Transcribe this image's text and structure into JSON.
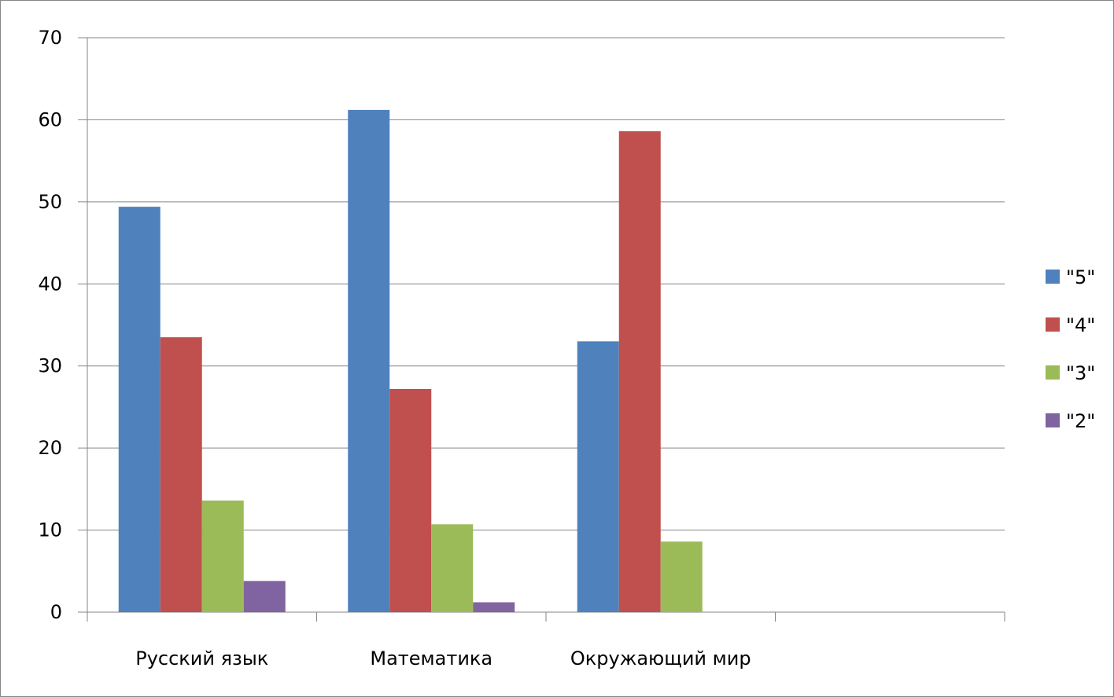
{
  "chart_data": {
    "type": "bar",
    "title": "",
    "xlabel": "",
    "ylabel": "",
    "categories": [
      "Русский язык",
      "Математика",
      "Окружающий мир",
      ""
    ],
    "series": [
      {
        "name": "\"5\"",
        "color": "#4F81BD",
        "values": [
          49.4,
          61.2,
          33.0,
          null
        ]
      },
      {
        "name": "\"4\"",
        "color": "#C0504D",
        "values": [
          33.5,
          27.2,
          58.6,
          null
        ]
      },
      {
        "name": "\"3\"",
        "color": "#9BBB59",
        "values": [
          13.6,
          10.7,
          8.6,
          null
        ]
      },
      {
        "name": "\"2\"",
        "color": "#8064A2",
        "values": [
          3.8,
          1.2,
          0,
          null
        ]
      }
    ],
    "ylim": [
      0,
      70
    ],
    "yticks": [
      0,
      10,
      20,
      30,
      40,
      50,
      60,
      70
    ],
    "grid": true,
    "legend": "right"
  }
}
